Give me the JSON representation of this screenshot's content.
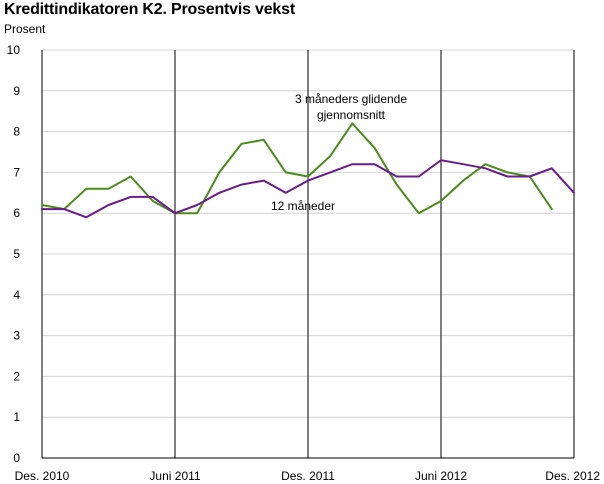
{
  "chart_data": {
    "type": "line",
    "title": "Kredittindikatoren K2. Prosentvis vekst",
    "ylabel": "Prosent",
    "xlabel": "",
    "ylim": [
      0,
      10
    ],
    "yticks": [
      "0",
      "1",
      "2",
      "3",
      "4",
      "5",
      "6",
      "7",
      "8",
      "9",
      "10"
    ],
    "x": [
      "2010-12",
      "2011-01",
      "2011-02",
      "2011-03",
      "2011-04",
      "2011-05",
      "2011-06",
      "2011-07",
      "2011-08",
      "2011-09",
      "2011-10",
      "2011-11",
      "2011-12",
      "2012-01",
      "2012-02",
      "2012-03",
      "2012-04",
      "2012-05",
      "2012-06",
      "2012-07",
      "2012-08",
      "2012-09",
      "2012-10",
      "2012-11",
      "2012-12"
    ],
    "xtick_labels": [
      {
        "at": "2010-12",
        "label": "Des. 2010"
      },
      {
        "at": "2011-06",
        "label": "Juni 2011"
      },
      {
        "at": "2011-12",
        "label": "Des. 2011"
      },
      {
        "at": "2012-06",
        "label": "Juni 2012"
      },
      {
        "at": "2012-12",
        "label": "Des. 2012"
      }
    ],
    "grid": "horizontal",
    "series": [
      {
        "name": "3 måneders glidende gjennomsnitt",
        "color": "#4a8c1c",
        "values": [
          6.2,
          6.1,
          6.6,
          6.6,
          6.9,
          6.3,
          6.0,
          6.0,
          7.0,
          7.7,
          7.8,
          7.0,
          6.9,
          7.4,
          8.2,
          7.6,
          6.7,
          6.0,
          6.3,
          6.8,
          7.2,
          7.0,
          6.9,
          6.1,
          null
        ]
      },
      {
        "name": "12 måneder",
        "color": "#6a1b8c",
        "values": [
          6.1,
          6.1,
          5.9,
          6.2,
          6.4,
          6.4,
          6.0,
          6.2,
          6.5,
          6.7,
          6.8,
          6.5,
          6.8,
          7.0,
          7.2,
          7.2,
          6.9,
          6.9,
          7.3,
          7.2,
          7.1,
          6.9,
          6.9,
          7.1,
          6.5
        ]
      }
    ],
    "annotations": [
      {
        "series": 0,
        "lines": [
          "3 måneders glidende",
          "gjennomsnitt"
        ]
      },
      {
        "series": 1,
        "lines": [
          "12 måneder"
        ]
      }
    ]
  }
}
